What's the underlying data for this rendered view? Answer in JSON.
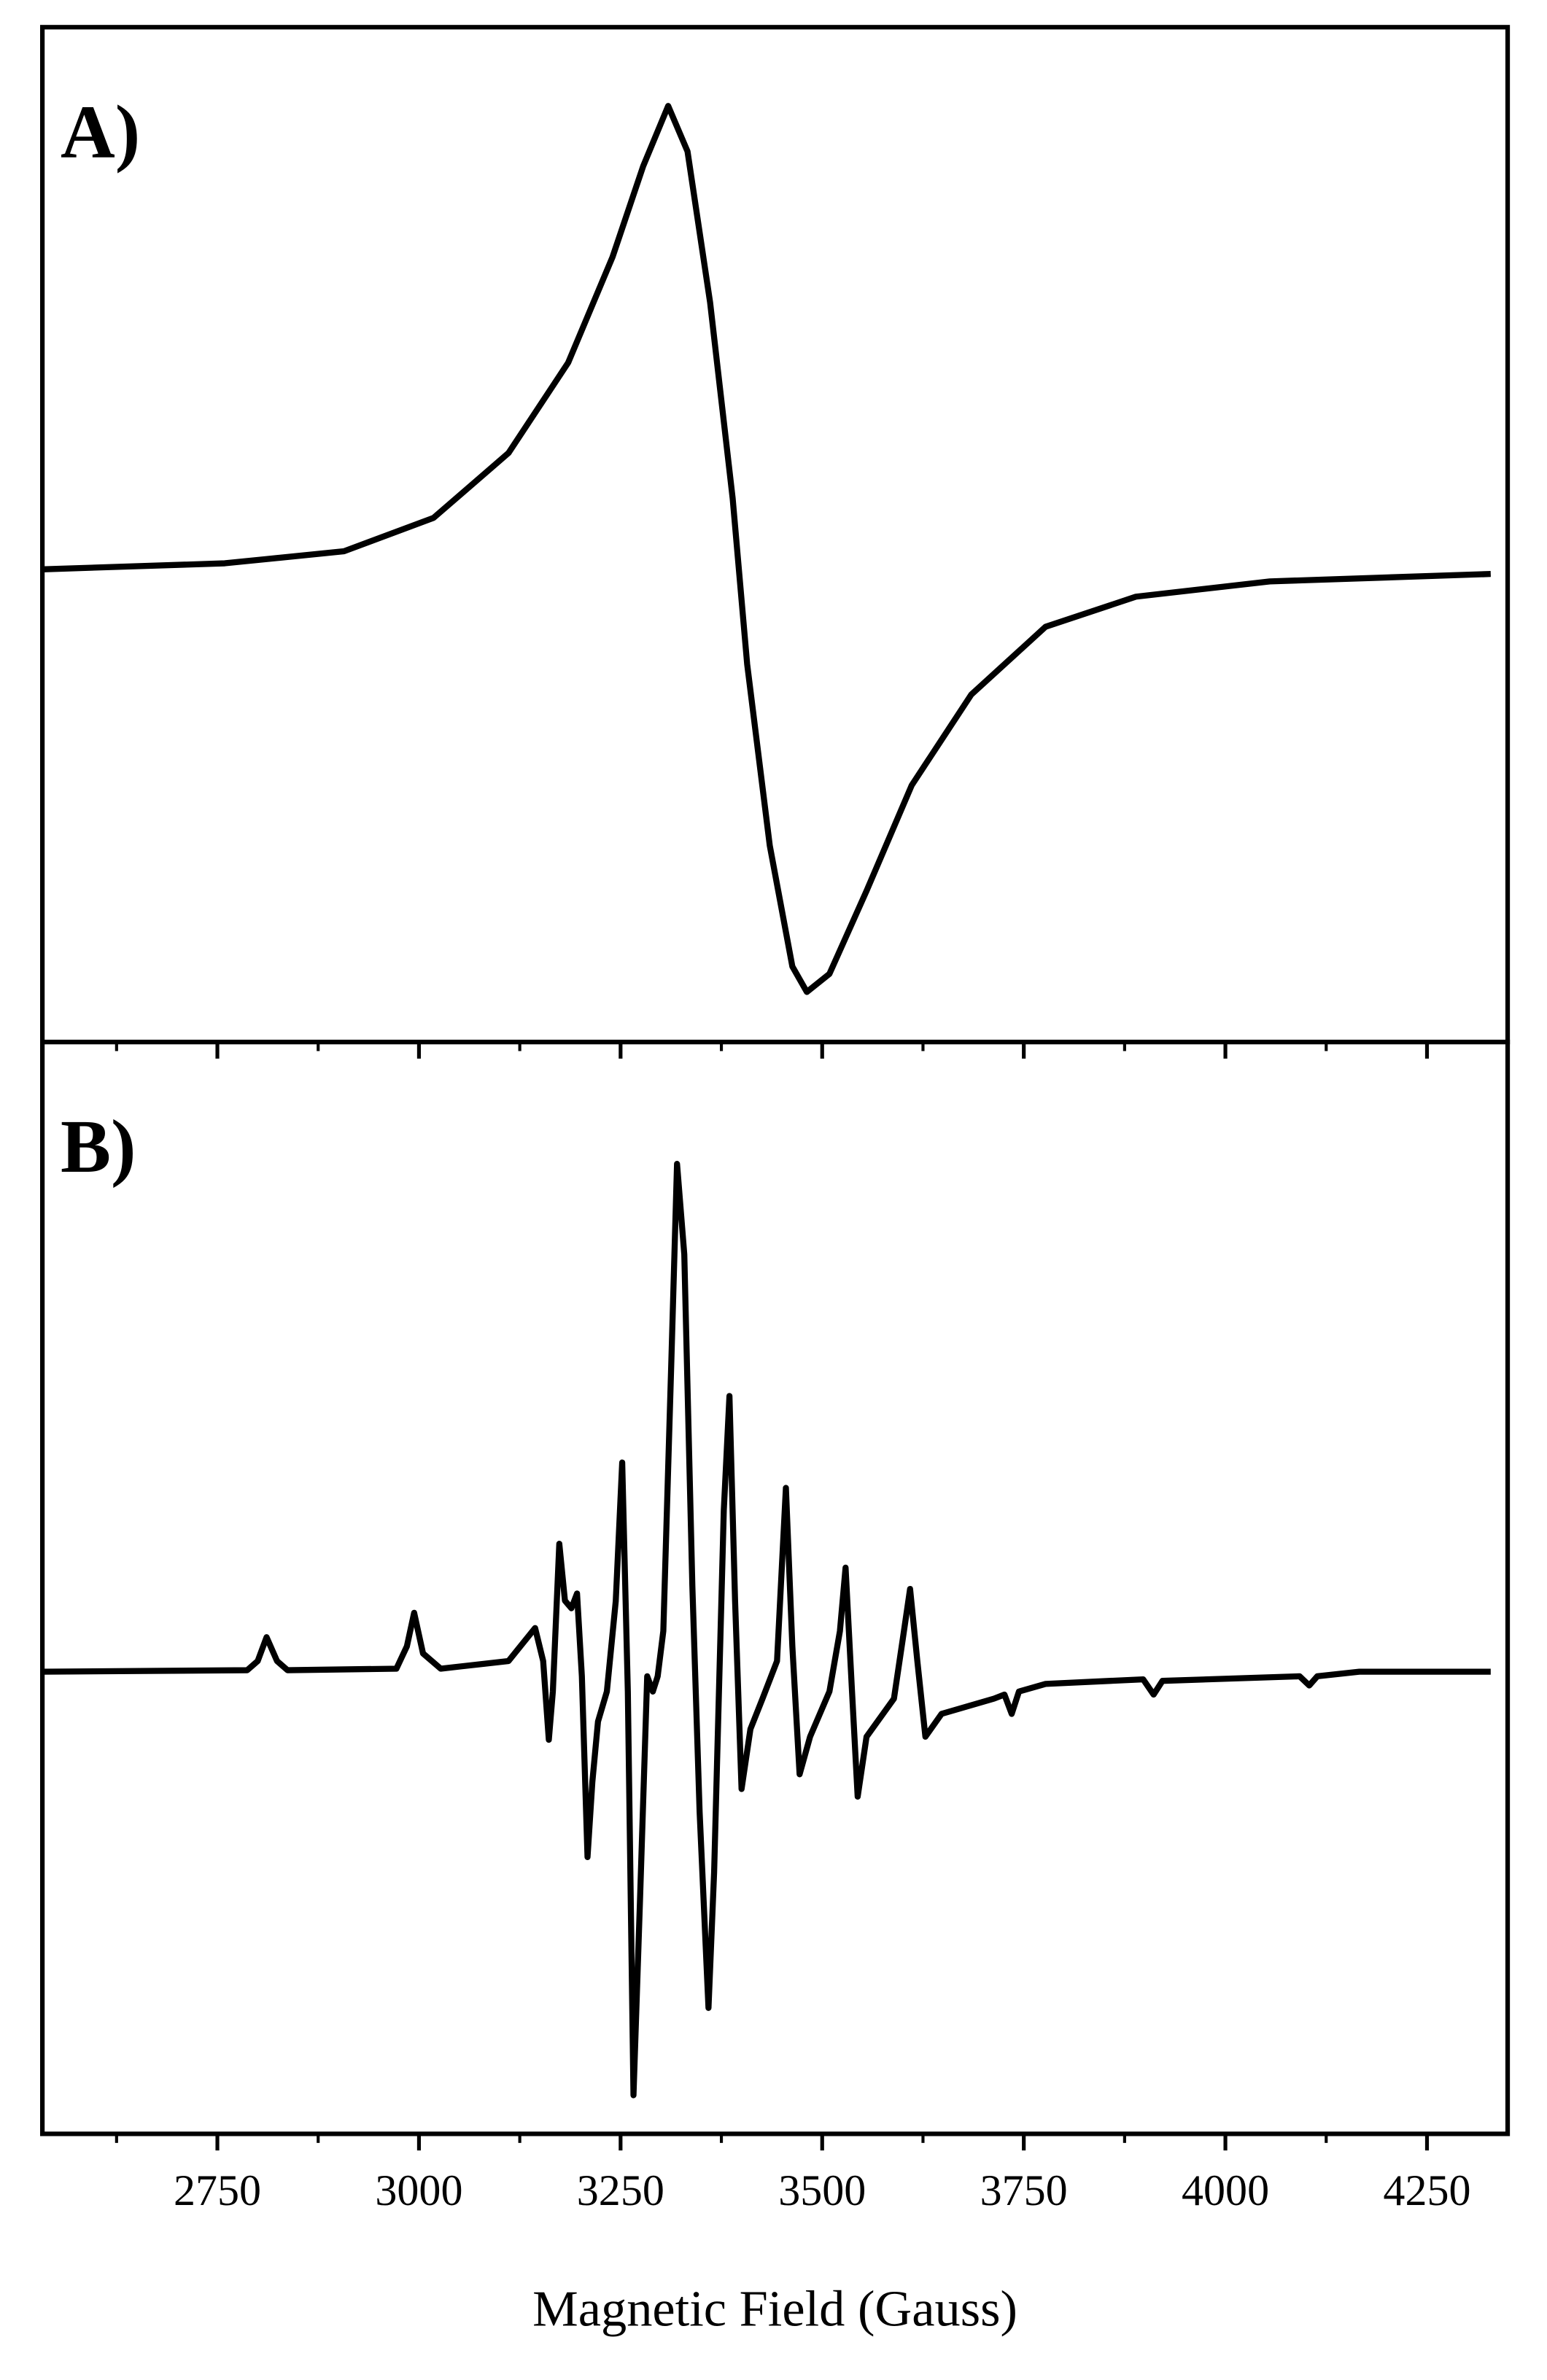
{
  "chart_data": [
    {
      "type": "line",
      "panel_label": "A)",
      "x": [
        2533,
        2759,
        2907,
        3018,
        3111,
        3185,
        3240,
        3278,
        3309,
        3333,
        3361,
        3389,
        3407,
        3435,
        3463,
        3481,
        3509,
        3555,
        3611,
        3685,
        3777,
        3889,
        4055,
        4329
      ],
      "series": [
        {
          "color": "#000000",
          "values": [
            0,
            0.013,
            0.039,
            0.111,
            0.251,
            0.446,
            0.674,
            0.87,
            1.0,
            0.902,
            0.576,
            0.153,
            -0.205,
            -0.596,
            -0.857,
            -0.912,
            -0.873,
            -0.694,
            -0.466,
            -0.27,
            -0.124,
            -0.059,
            -0.026,
            -0.01
          ]
        }
      ],
      "xlim": [
        2533,
        4350
      ],
      "ylim": [
        -1.02,
        1.17
      ],
      "xticks": [
        2750,
        3000,
        3250,
        3500,
        3750,
        4000,
        4250
      ],
      "xminorticks": [
        2625,
        2875,
        3125,
        3375,
        3625,
        3875,
        4125
      ]
    },
    {
      "type": "line",
      "panel_label": "B)",
      "xlabel": "Magnetic Field (Gauss)",
      "x": [
        2533,
        2787,
        2800,
        2811,
        2824,
        2837,
        2972,
        2985,
        2994,
        3005,
        3027,
        3111,
        3144,
        3154,
        3161,
        3166,
        3174,
        3181,
        3189,
        3196,
        3202,
        3209,
        3215,
        3222,
        3233,
        3244,
        3252,
        3259,
        3266,
        3274,
        3283,
        3290,
        3296,
        3303,
        3313,
        3320,
        3329,
        3339,
        3348,
        3359,
        3366,
        3378,
        3385,
        3392,
        3400,
        3411,
        3426,
        3444,
        3455,
        3463,
        3472,
        3485,
        3509,
        3522,
        3529,
        3537,
        3544,
        3555,
        3589,
        3600,
        3609,
        3618,
        3628,
        3648,
        3713,
        3726,
        3735,
        3744,
        3777,
        3898,
        3911,
        3922,
        4092,
        4104,
        4114,
        4166,
        4329
      ],
      "series": [
        {
          "color": "#000000",
          "values": [
            0,
            0.003,
            0.021,
            0.068,
            0.021,
            0.003,
            0.006,
            0.05,
            0.116,
            0.036,
            0.006,
            0.021,
            0.086,
            0.021,
            -0.134,
            -0.039,
            0.252,
            0.14,
            0.125,
            0.154,
            -0.009,
            -0.365,
            -0.217,
            -0.098,
            -0.039,
            0.139,
            0.412,
            -0.039,
            -0.834,
            -0.454,
            -0.009,
            -0.039,
            -0.009,
            0.08,
            0.614,
            1.0,
            0.822,
            0.169,
            -0.276,
            -0.662,
            -0.395,
            0.318,
            0.543,
            0.139,
            -0.231,
            -0.113,
            -0.053,
            0.021,
            0.362,
            0.05,
            -0.202,
            -0.128,
            -0.039,
            0.08,
            0.205,
            -0.039,
            -0.246,
            -0.128,
            -0.053,
            0.065,
            0.163,
            0.021,
            -0.128,
            -0.083,
            -0.053,
            -0.045,
            -0.083,
            -0.039,
            -0.024,
            -0.015,
            -0.045,
            -0.018,
            -0.009,
            -0.027,
            -0.009,
            0,
            0
          ]
        }
      ],
      "xlim": [
        2533,
        4350
      ],
      "ylim": [
        -0.91,
        1.24
      ],
      "xticks": [
        2750,
        3000,
        3250,
        3500,
        3750,
        4000,
        4250
      ],
      "xminorticks": [
        2625,
        2875,
        3125,
        3375,
        3625,
        3875,
        4125
      ]
    }
  ]
}
